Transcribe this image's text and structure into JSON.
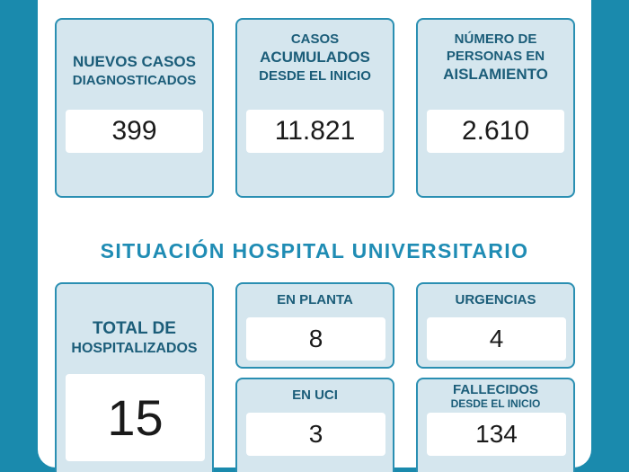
{
  "top_cards": [
    {
      "line1": "NUEVOS CASOS",
      "line2": "DIAGNOSTICADOS",
      "value": "399"
    },
    {
      "line1": "CASOS",
      "line2": "ACUMULADOS",
      "line3": "DESDE EL INICIO",
      "value": "11.821"
    },
    {
      "line1": "NÚMERO DE",
      "line2": "PERSONAS EN",
      "line3": "AISLAMIENTO",
      "value": "2.610"
    }
  ],
  "section_title": "SITUACIÓN HOSPITAL UNIVERSITARIO",
  "total_card": {
    "line1": "TOTAL DE",
    "line2": "HOSPITALIZADOS",
    "value": "15"
  },
  "small_cards": {
    "planta": {
      "label": "EN PLANTA",
      "value": "8"
    },
    "urgencias": {
      "label": "URGENCIAS",
      "value": "4"
    },
    "uci": {
      "label": "EN UCI",
      "value": "3"
    },
    "fallecidos": {
      "label": "FALLECIDOS",
      "sublabel": "DESDE EL INICIO",
      "value": "134"
    }
  },
  "colors": {
    "background": "#1a8aad",
    "card_fill": "#d5e6ee",
    "card_border": "#2a8fb2",
    "label_text": "#1b5d79",
    "title_text": "#1f8cb4"
  }
}
